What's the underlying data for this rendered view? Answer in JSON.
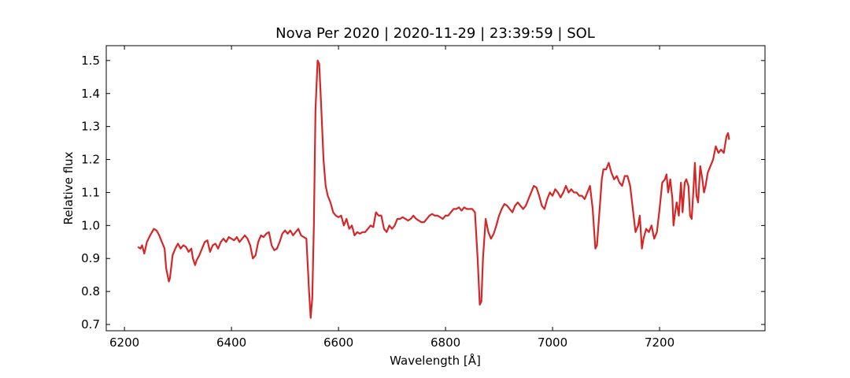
{
  "chart_data": {
    "type": "line",
    "title": "Nova Per 2020 | 2020-11-29 | 23:39:59 | SOL",
    "x_label": "Wavelength [Å]",
    "y_label": "Relative flux",
    "xlim": [
      6166,
      7397
    ],
    "ylim": [
      0.681,
      1.545
    ],
    "xticks": [
      6200,
      6400,
      6600,
      6800,
      7000,
      7200
    ],
    "yticks": [
      {
        "value": 0.7,
        "label": "0.7"
      },
      {
        "value": 0.8,
        "label": "0.8"
      },
      {
        "value": 0.9,
        "label": "0.9"
      },
      {
        "value": 1.0,
        "label": "1.0"
      },
      {
        "value": 1.1,
        "label": "1.1"
      },
      {
        "value": 1.2,
        "label": "1.2"
      },
      {
        "value": 1.3,
        "label": "1.3"
      },
      {
        "value": 1.4,
        "label": "1.4"
      },
      {
        "value": 1.5,
        "label": "1.5"
      }
    ],
    "grid": false,
    "x": [
      6225,
      6230,
      6233,
      6237,
      6242,
      6248,
      6255,
      6260,
      6265,
      6270,
      6275,
      6278,
      6283,
      6285,
      6290,
      6295,
      6300,
      6305,
      6310,
      6315,
      6320,
      6325,
      6328,
      6332,
      6335,
      6340,
      6345,
      6350,
      6355,
      6360,
      6365,
      6370,
      6375,
      6380,
      6385,
      6390,
      6395,
      6400,
      6405,
      6410,
      6415,
      6420,
      6425,
      6430,
      6435,
      6440,
      6445,
      6450,
      6455,
      6460,
      6465,
      6470,
      6475,
      6480,
      6485,
      6490,
      6495,
      6500,
      6505,
      6510,
      6515,
      6520,
      6525,
      6530,
      6535,
      6540,
      6545,
      6548,
      6551,
      6554,
      6557,
      6561,
      6564,
      6568,
      6572,
      6576,
      6580,
      6585,
      6590,
      6595,
      6600,
      6605,
      6610,
      6615,
      6620,
      6625,
      6630,
      6635,
      6640,
      6645,
      6650,
      6655,
      6660,
      6665,
      6670,
      6675,
      6680,
      6685,
      6690,
      6695,
      6700,
      6705,
      6710,
      6715,
      6720,
      6725,
      6730,
      6735,
      6740,
      6745,
      6750,
      6755,
      6760,
      6765,
      6770,
      6775,
      6780,
      6785,
      6790,
      6795,
      6800,
      6805,
      6810,
      6815,
      6820,
      6825,
      6830,
      6835,
      6840,
      6845,
      6850,
      6855,
      6860,
      6864,
      6867,
      6870,
      6875,
      6880,
      6885,
      6890,
      6895,
      6900,
      6905,
      6910,
      6915,
      6920,
      6925,
      6930,
      6935,
      6940,
      6945,
      6950,
      6955,
      6960,
      6965,
      6970,
      6975,
      6980,
      6985,
      6990,
      6995,
      7000,
      7005,
      7010,
      7015,
      7020,
      7025,
      7030,
      7035,
      7040,
      7045,
      7050,
      7055,
      7060,
      7065,
      7070,
      7075,
      7080,
      7083,
      7088,
      7092,
      7095,
      7100,
      7105,
      7110,
      7115,
      7120,
      7125,
      7130,
      7135,
      7140,
      7145,
      7150,
      7155,
      7160,
      7163,
      7167,
      7170,
      7175,
      7180,
      7185,
      7190,
      7195,
      7200,
      7205,
      7210,
      7213,
      7216,
      7220,
      7224,
      7226,
      7230,
      7232,
      7236,
      7240,
      7243,
      7247,
      7250,
      7254,
      7257,
      7260,
      7263,
      7266,
      7269,
      7272,
      7276,
      7280,
      7283,
      7286,
      7290,
      7295,
      7300,
      7305,
      7310,
      7315,
      7320,
      7325,
      7328,
      7330
    ],
    "series": [
      {
        "name": "Nova Per 2020",
        "color": "#d62728",
        "values": [
          0.935,
          0.93,
          0.94,
          0.915,
          0.95,
          0.97,
          0.99,
          0.985,
          0.97,
          0.95,
          0.93,
          0.87,
          0.83,
          0.84,
          0.91,
          0.93,
          0.945,
          0.93,
          0.94,
          0.935,
          0.92,
          0.93,
          0.9,
          0.88,
          0.895,
          0.91,
          0.93,
          0.95,
          0.955,
          0.92,
          0.94,
          0.945,
          0.93,
          0.95,
          0.96,
          0.95,
          0.965,
          0.96,
          0.955,
          0.965,
          0.95,
          0.96,
          0.97,
          0.96,
          0.94,
          0.9,
          0.91,
          0.95,
          0.97,
          0.965,
          0.975,
          0.98,
          0.94,
          0.925,
          0.93,
          0.95,
          0.975,
          0.985,
          0.975,
          0.985,
          0.97,
          0.98,
          0.99,
          0.97,
          0.965,
          0.96,
          0.8,
          0.72,
          0.78,
          1.0,
          1.35,
          1.5,
          1.49,
          1.35,
          1.2,
          1.12,
          1.09,
          1.07,
          1.04,
          1.03,
          1.025,
          1.03,
          1.0,
          1.02,
          0.99,
          1.0,
          0.97,
          0.98,
          0.975,
          0.98,
          0.98,
          0.99,
          1.0,
          0.995,
          1.04,
          1.03,
          1.03,
          0.99,
          0.98,
          1.0,
          0.99,
          1.0,
          1.02,
          1.02,
          1.025,
          1.02,
          1.015,
          1.02,
          1.03,
          1.02,
          1.015,
          1.01,
          1.01,
          1.02,
          1.03,
          1.035,
          1.03,
          1.03,
          1.025,
          1.02,
          1.03,
          1.03,
          1.04,
          1.05,
          1.05,
          1.055,
          1.045,
          1.055,
          1.05,
          1.05,
          1.05,
          1.04,
          0.9,
          0.76,
          0.77,
          0.9,
          1.02,
          0.98,
          0.96,
          0.975,
          1.0,
          1.03,
          1.05,
          1.065,
          1.06,
          1.05,
          1.04,
          1.06,
          1.07,
          1.06,
          1.05,
          1.06,
          1.08,
          1.1,
          1.12,
          1.115,
          1.09,
          1.06,
          1.05,
          1.08,
          1.1,
          1.09,
          1.11,
          1.1,
          1.085,
          1.1,
          1.12,
          1.1,
          1.11,
          1.1,
          1.1,
          1.09,
          1.09,
          1.08,
          1.1,
          1.12,
          1.05,
          0.93,
          0.94,
          1.05,
          1.14,
          1.17,
          1.17,
          1.19,
          1.16,
          1.14,
          1.15,
          1.13,
          1.12,
          1.15,
          1.15,
          1.12,
          1.05,
          0.98,
          1.0,
          1.03,
          0.93,
          0.96,
          0.99,
          0.98,
          1.0,
          0.96,
          0.98,
          1.05,
          1.13,
          1.14,
          1.155,
          1.1,
          1.14,
          1.08,
          1.0,
          1.05,
          1.07,
          1.03,
          1.13,
          1.04,
          1.13,
          1.14,
          1.12,
          1.03,
          1.02,
          1.1,
          1.19,
          1.09,
          1.07,
          1.18,
          1.14,
          1.1,
          1.12,
          1.16,
          1.18,
          1.2,
          1.24,
          1.22,
          1.23,
          1.22,
          1.27,
          1.28,
          1.26
        ]
      }
    ]
  }
}
